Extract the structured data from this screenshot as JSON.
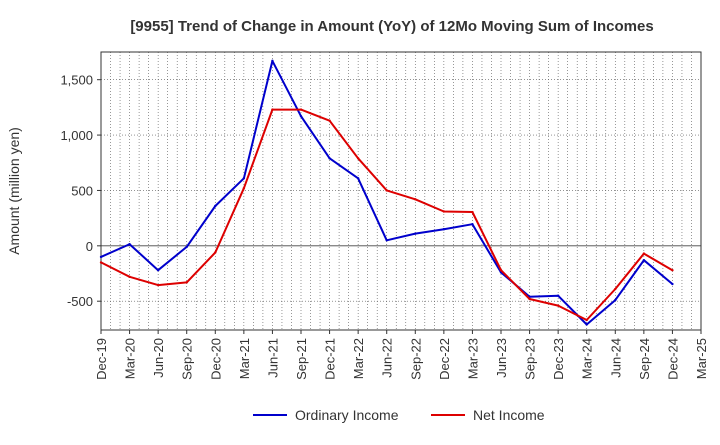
{
  "chart_data": {
    "type": "line",
    "title": "[9955]  Trend of Change in Amount (YoY) of 12Mo Moving Sum of Incomes",
    "xlabel": "",
    "ylabel": "Amount (million yen)",
    "ylim": [
      -760,
      1750
    ],
    "yticks": [
      -500,
      0,
      500,
      1000,
      1500
    ],
    "ytick_labels": [
      "-500",
      "0",
      "500",
      "1,000",
      "1,500"
    ],
    "categories": [
      "Dec-19",
      "Mar-20",
      "Jun-20",
      "Sep-20",
      "Dec-20",
      "Mar-21",
      "Jun-21",
      "Sep-21",
      "Dec-21",
      "Mar-22",
      "Jun-22",
      "Sep-22",
      "Dec-22",
      "Mar-23",
      "Jun-23",
      "Sep-23",
      "Dec-23",
      "Mar-24",
      "Jun-24",
      "Sep-24",
      "Dec-24",
      "Mar-25"
    ],
    "grid": true,
    "legend_position": "bottom-center",
    "series": [
      {
        "name": "Ordinary Income",
        "color": "#0000cc",
        "values": [
          -100,
          15,
          -220,
          -10,
          360,
          610,
          1670,
          1170,
          790,
          610,
          50,
          110,
          150,
          195,
          -240,
          -460,
          -450,
          -710,
          -490,
          -130,
          -345,
          null
        ]
      },
      {
        "name": "Net Income",
        "color": "#dd0000",
        "values": [
          -150,
          -280,
          -355,
          -330,
          -60,
          520,
          1230,
          1230,
          1130,
          790,
          500,
          420,
          310,
          305,
          -220,
          -480,
          -540,
          -670,
          -390,
          -70,
          -220,
          null
        ]
      }
    ]
  }
}
